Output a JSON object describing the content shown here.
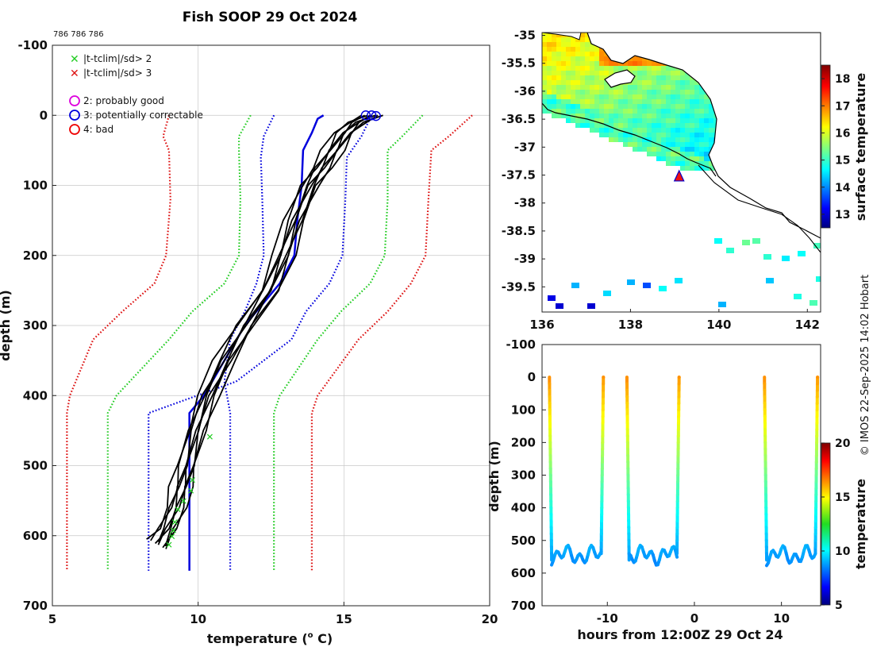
{
  "title": "Fish SOOP 29 Oct 2024",
  "platform_ids": "786 786 786",
  "copyright": "© IMOS 22-Sep-2025 14:02 Hobart",
  "colors": {
    "threshold_2sd": "#22cc22",
    "threshold_3sd": "#dd1111",
    "climatology": "#0000dd",
    "profiles": "#000000",
    "flag_probably_good": "#dd00dd",
    "flag_correctable": "#0000dd",
    "flag_bad": "#ee0000"
  },
  "legend": {
    "sd2": "|t-tclim|/sd> 2",
    "sd3": "|t-tclim|/sd> 3",
    "flag2": "2: probably good",
    "flag3": "3: potentially correctable",
    "flag4": "4: bad"
  },
  "chart_data": [
    {
      "id": "profile",
      "type": "line",
      "title": "Fish SOOP 29 Oct 2024",
      "xlabel": "temperature (",
      "xlabel_sup": "o",
      "xlabel_end": " C)",
      "ylabel": "depth (m)",
      "xlim": [
        5,
        20
      ],
      "ylim": [
        -100,
        700
      ],
      "y_reversed": true,
      "xticks": [
        5,
        10,
        15,
        20
      ],
      "yticks": [
        -100,
        0,
        100,
        200,
        300,
        400,
        500,
        600,
        700
      ],
      "grid": true,
      "climatology": {
        "name": "climatology mean",
        "depth": [
          0,
          5,
          25,
          50,
          100,
          150,
          200,
          240,
          300,
          350,
          400,
          425,
          650
        ],
        "temp": [
          14.3,
          14.1,
          13.9,
          13.6,
          13.55,
          13.4,
          13.3,
          12.8,
          11.6,
          10.9,
          10.2,
          9.7,
          9.7
        ]
      },
      "thresholds": [
        {
          "name": "clim +1sd",
          "color": "#0000dd",
          "depth": [
            0,
            30,
            60,
            120,
            200,
            240,
            280,
            320,
            380,
            425,
            650
          ],
          "temp": [
            12.6,
            12.25,
            12.15,
            12.2,
            12.25,
            12.0,
            11.6,
            11.1,
            10.9,
            11.1,
            11.1
          ],
          "side": "left"
        },
        {
          "name": "clim -1sd",
          "color": "#0000dd",
          "depth": [
            0,
            30,
            60,
            120,
            200,
            240,
            280,
            320,
            380,
            425,
            650
          ],
          "temp": [
            15.95,
            15.6,
            15.1,
            15.05,
            14.95,
            14.5,
            13.7,
            13.2,
            11.3,
            8.3,
            8.3
          ],
          "side": "right"
        },
        {
          "name": "2sd",
          "color": "#22cc22",
          "depth": [
            0,
            30,
            50,
            120,
            200,
            240,
            280,
            320,
            400,
            425,
            650
          ],
          "temp": [
            11.8,
            11.4,
            11.4,
            11.45,
            11.4,
            10.9,
            9.8,
            9.0,
            7.2,
            6.9,
            6.9
          ]
        },
        {
          "name": "2sd-hi",
          "color": "#22cc22",
          "depth": [
            0,
            30,
            50,
            120,
            200,
            240,
            280,
            320,
            400,
            425,
            650
          ],
          "temp": [
            17.7,
            17.0,
            16.5,
            16.5,
            16.4,
            15.9,
            14.9,
            14.1,
            12.8,
            12.6,
            12.6
          ]
        },
        {
          "name": "3sd",
          "color": "#dd1111",
          "depth": [
            0,
            30,
            50,
            120,
            200,
            240,
            280,
            320,
            400,
            425,
            650
          ],
          "temp": [
            9.0,
            8.8,
            9.0,
            9.05,
            8.9,
            8.5,
            7.4,
            6.4,
            5.6,
            5.5,
            5.5
          ]
        },
        {
          "name": "3sd-hi",
          "color": "#dd1111",
          "depth": [
            0,
            30,
            50,
            120,
            200,
            240,
            280,
            320,
            400,
            425,
            650
          ],
          "temp": [
            19.4,
            18.6,
            18.0,
            17.9,
            17.8,
            17.3,
            16.5,
            15.5,
            14.1,
            13.9,
            13.9
          ]
        }
      ],
      "profiles": {
        "depth": [
          0,
          10,
          25,
          50,
          75,
          100,
          150,
          200,
          250,
          300,
          350,
          400,
          450,
          500,
          530,
          560,
          590,
          605
        ],
        "base_temp": [
          15.9,
          15.4,
          15.0,
          14.6,
          14.2,
          13.8,
          13.3,
          12.9,
          12.4,
          11.6,
          10.9,
          10.3,
          9.9,
          9.6,
          9.4,
          9.2,
          8.9,
          8.6
        ],
        "offsets": [
          -0.3,
          -0.18,
          -0.08,
          0.0,
          0.08,
          0.16,
          0.26,
          0.34
        ]
      },
      "flag_points": [
        {
          "flag": 3,
          "temp": 15.75,
          "depth": 0
        },
        {
          "flag": 3,
          "temp": 15.95,
          "depth": 0
        },
        {
          "flag": 3,
          "temp": 16.1,
          "depth": 1
        }
      ],
      "x_marks": [
        {
          "temp": 10.4,
          "depth": 458
        },
        {
          "temp": 9.8,
          "depth": 520
        },
        {
          "temp": 9.75,
          "depth": 535
        },
        {
          "temp": 9.5,
          "depth": 550
        },
        {
          "temp": 9.3,
          "depth": 562
        },
        {
          "temp": 9.2,
          "depth": 580
        },
        {
          "temp": 9.15,
          "depth": 592
        },
        {
          "temp": 9.1,
          "depth": 600
        },
        {
          "temp": 9.0,
          "depth": 612
        }
      ]
    },
    {
      "id": "map",
      "type": "heatmap",
      "xlim": [
        136,
        142.3
      ],
      "ylim": [
        -39.95,
        -34.95
      ],
      "xticks": [
        136,
        138,
        140,
        142
      ],
      "yticks": [
        -35,
        -35.5,
        -36,
        -36.5,
        -37,
        -37.5,
        -38,
        -38.5,
        -39,
        -39.5
      ],
      "colorbar": {
        "label": "surface temperature",
        "range": [
          12.5,
          18.5
        ],
        "ticks": [
          13,
          14,
          15,
          16,
          17,
          18
        ]
      },
      "marker": {
        "lon": 139.1,
        "lat": -37.52
      }
    },
    {
      "id": "timeseries",
      "type": "scatter",
      "xlabel": "hours from 12:00Z 29 Oct 24",
      "ylabel": "depth (m)",
      "xlim": [
        -17.5,
        14.5
      ],
      "ylim": [
        -100,
        700
      ],
      "y_reversed": true,
      "xticks": [
        -10,
        0,
        10
      ],
      "yticks": [
        -100,
        0,
        100,
        200,
        300,
        400,
        500,
        600,
        700
      ],
      "colorbar": {
        "label": "temperature",
        "range": [
          5,
          20
        ],
        "ticks": [
          5,
          10,
          15,
          20
        ]
      },
      "casts": [
        {
          "t_start": -16.8,
          "t_end": -10.3
        },
        {
          "t_start": -7.9,
          "t_end": -1.6
        },
        {
          "t_start": 7.9,
          "t_end": 14.3
        }
      ]
    }
  ]
}
